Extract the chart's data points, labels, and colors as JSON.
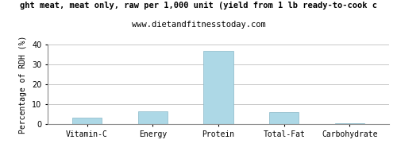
{
  "title": "ght meat, meat only, raw per 1,000 unit (yield from 1 lb ready-to-cook c",
  "subtitle": "www.dietandfitnesstoday.com",
  "categories": [
    "Vitamin-C",
    "Energy",
    "Protein",
    "Total-Fat",
    "Carbohydrate"
  ],
  "values": [
    3.2,
    6.4,
    36.8,
    6.2,
    0.4
  ],
  "bar_color": "#add8e6",
  "ylabel": "Percentage of RDH (%)",
  "ylim": [
    0,
    40
  ],
  "yticks": [
    0,
    10,
    20,
    30,
    40
  ],
  "background_color": "#ffffff",
  "grid_color": "#c8c8c8",
  "title_fontsize": 7.5,
  "subtitle_fontsize": 7.5,
  "tick_fontsize": 7,
  "ylabel_fontsize": 7,
  "bar_width": 0.45
}
